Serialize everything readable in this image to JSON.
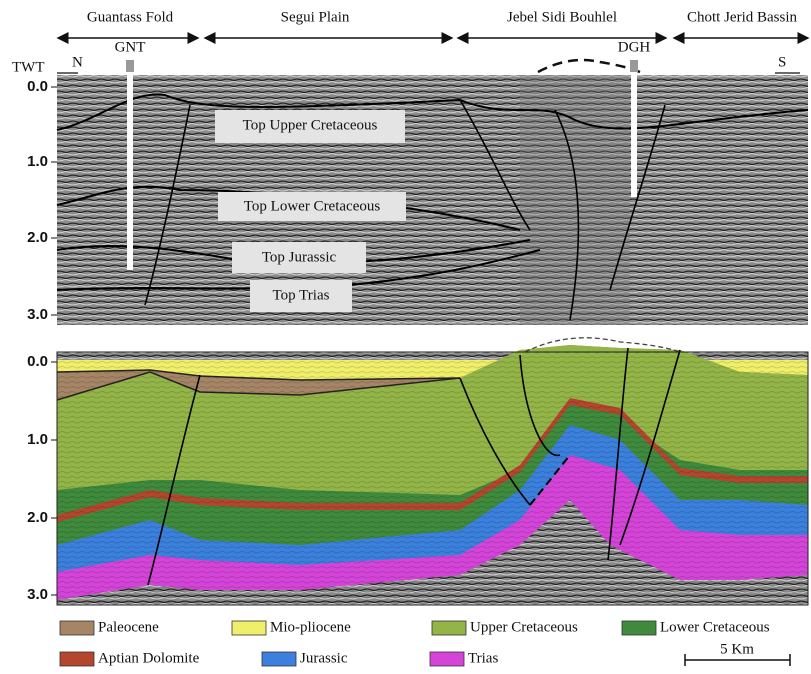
{
  "regions": [
    "Guantass Fold",
    "Segui Plain",
    "Jebel Sidi Bouhlel",
    "Chott Jerid Bassin"
  ],
  "wells": [
    "GNT",
    "DGH"
  ],
  "axis_title": "TWT",
  "directions": [
    "N",
    "S"
  ],
  "top_panel": {
    "axis_labels": [
      "0.0",
      "1.0",
      "2.0",
      "3.0"
    ],
    "horizons": [
      "Top Upper Cretaceous",
      "Top Lower Cretaceous",
      "Top Jurassic",
      "Top Trias"
    ]
  },
  "bottom_panel": {
    "axis_labels": [
      "0.0",
      "1.0",
      "2.0",
      "3.0"
    ]
  },
  "legend": [
    {
      "label": "Paleocene",
      "color": "#a58566"
    },
    {
      "label": "Mio-pliocene",
      "color": "#f0ef6a"
    },
    {
      "label": "Upper Cretaceous",
      "color": "#93b548"
    },
    {
      "label": "Lower Cretaceous",
      "color": "#3f8a3c"
    },
    {
      "label": "Aptian Dolomite",
      "color": "#b4462e"
    },
    {
      "label": "Jurassic",
      "color": "#3b80dc"
    },
    {
      "label": "Trias",
      "color": "#d444d8"
    }
  ],
  "scale_bar": "5 Km"
}
